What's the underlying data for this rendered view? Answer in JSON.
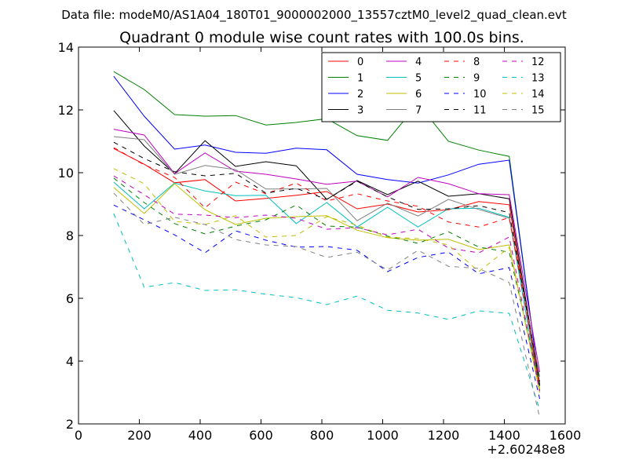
{
  "header": "Data file: modeM0/AS1A04_180T01_9000002000_13557cztM0_level2_quad_clean.evt",
  "chart_data": {
    "type": "line",
    "title": "Quadrant 0 module wise count rates with 100.0s bins.",
    "xlabel": "",
    "ylabel": "",
    "x_offset_label": "+2.60248e8",
    "xlim": [
      0,
      1600
    ],
    "ylim": [
      2,
      14
    ],
    "x_ticks": [
      0,
      200,
      400,
      600,
      800,
      1000,
      1200,
      1400,
      1600
    ],
    "y_ticks": [
      2,
      4,
      6,
      8,
      10,
      12,
      14
    ],
    "grid": false,
    "legend_position": "top-right",
    "legend_columns": 4,
    "x": [
      116,
      216,
      316,
      416,
      516,
      616,
      716,
      816,
      916,
      1016,
      1116,
      1216,
      1316,
      1416,
      1516
    ],
    "series": [
      {
        "name": "0",
        "color": "#ff0000",
        "style": "solid",
        "values": [
          10.77,
          10.27,
          9.68,
          9.78,
          9.1,
          9.18,
          9.28,
          9.4,
          8.85,
          9.0,
          8.75,
          8.82,
          9.08,
          8.98,
          3.08
        ]
      },
      {
        "name": "1",
        "color": "#008000",
        "style": "solid",
        "values": [
          13.22,
          12.65,
          11.85,
          11.8,
          11.82,
          11.52,
          11.6,
          11.72,
          11.18,
          11.03,
          12.2,
          11.0,
          10.72,
          10.52,
          3.2
        ]
      },
      {
        "name": "2",
        "color": "#0000ff",
        "style": "solid",
        "values": [
          13.07,
          11.8,
          10.75,
          10.88,
          10.65,
          10.62,
          10.78,
          10.73,
          9.95,
          9.78,
          9.67,
          9.93,
          10.27,
          10.4,
          3.22
        ]
      },
      {
        "name": "3",
        "color": "#000000",
        "style": "solid",
        "values": [
          11.98,
          10.85,
          9.97,
          11.02,
          10.2,
          10.35,
          10.22,
          9.15,
          9.75,
          9.3,
          9.73,
          9.25,
          9.33,
          9.17,
          3.25
        ]
      },
      {
        "name": "4",
        "color": "#bf00bf",
        "style": "solid",
        "values": [
          11.38,
          11.2,
          9.97,
          10.63,
          10.05,
          9.95,
          9.8,
          9.63,
          9.73,
          9.23,
          9.85,
          9.65,
          9.33,
          9.3,
          3.65
        ]
      },
      {
        "name": "5",
        "color": "#00bfbf",
        "style": "solid",
        "values": [
          9.7,
          8.85,
          9.67,
          9.42,
          9.27,
          9.28,
          8.38,
          9.05,
          8.27,
          8.9,
          8.27,
          8.85,
          8.87,
          8.58,
          3.0
        ]
      },
      {
        "name": "6",
        "color": "#bfbf00",
        "style": "solid",
        "values": [
          9.53,
          8.7,
          9.65,
          8.82,
          8.35,
          8.55,
          8.6,
          8.63,
          8.17,
          7.93,
          7.85,
          7.88,
          7.55,
          7.7,
          3.0
        ]
      },
      {
        "name": "7",
        "color": "#808080",
        "style": "solid",
        "values": [
          11.15,
          11.05,
          9.95,
          10.23,
          10.1,
          9.48,
          9.48,
          9.5,
          8.47,
          9.03,
          8.62,
          9.15,
          8.83,
          8.55,
          3.5
        ]
      },
      {
        "name": "8",
        "color": "#ff0000",
        "style": "dashed",
        "values": [
          10.8,
          10.25,
          9.85,
          8.88,
          9.7,
          9.33,
          9.67,
          9.1,
          9.33,
          9.1,
          8.93,
          8.43,
          8.27,
          8.57,
          3.3
        ]
      },
      {
        "name": "9",
        "color": "#008000",
        "style": "dashed",
        "values": [
          9.83,
          9.05,
          8.38,
          8.05,
          8.3,
          8.5,
          8.97,
          8.3,
          8.27,
          7.98,
          7.75,
          8.12,
          7.63,
          7.47,
          3.3
        ]
      },
      {
        "name": "10",
        "color": "#0000ff",
        "style": "dashed",
        "values": [
          8.97,
          8.5,
          8.02,
          7.45,
          8.15,
          7.85,
          7.63,
          7.65,
          7.53,
          6.85,
          7.3,
          7.47,
          6.78,
          6.98,
          2.8
        ]
      },
      {
        "name": "11",
        "color": "#000000",
        "style": "dashed",
        "values": [
          10.97,
          10.45,
          10.03,
          9.9,
          9.98,
          9.35,
          9.5,
          9.15,
          9.73,
          9.23,
          8.83,
          8.85,
          8.95,
          8.73,
          3.35
        ]
      },
      {
        "name": "12",
        "color": "#bf00bf",
        "style": "dashed",
        "values": [
          9.9,
          9.3,
          8.68,
          8.65,
          8.57,
          8.65,
          8.55,
          8.2,
          8.25,
          8.02,
          8.2,
          7.6,
          7.45,
          7.95,
          3.05
        ]
      },
      {
        "name": "13",
        "color": "#00bfbf",
        "style": "dashed",
        "values": [
          8.7,
          6.35,
          6.5,
          6.25,
          6.27,
          6.13,
          6.02,
          5.8,
          6.07,
          5.62,
          5.53,
          5.33,
          5.6,
          5.52,
          2.45
        ]
      },
      {
        "name": "14",
        "color": "#bfbf00",
        "style": "dashed",
        "values": [
          10.13,
          9.65,
          8.45,
          8.35,
          8.63,
          7.95,
          8.0,
          8.6,
          8.33,
          7.95,
          7.9,
          7.7,
          6.85,
          7.62,
          3.1
        ]
      },
      {
        "name": "15",
        "color": "#808080",
        "style": "dashed",
        "values": [
          9.35,
          8.35,
          8.58,
          8.35,
          7.87,
          7.7,
          7.65,
          7.3,
          7.47,
          6.9,
          7.53,
          7.02,
          6.95,
          6.5,
          2.2
        ]
      }
    ]
  }
}
